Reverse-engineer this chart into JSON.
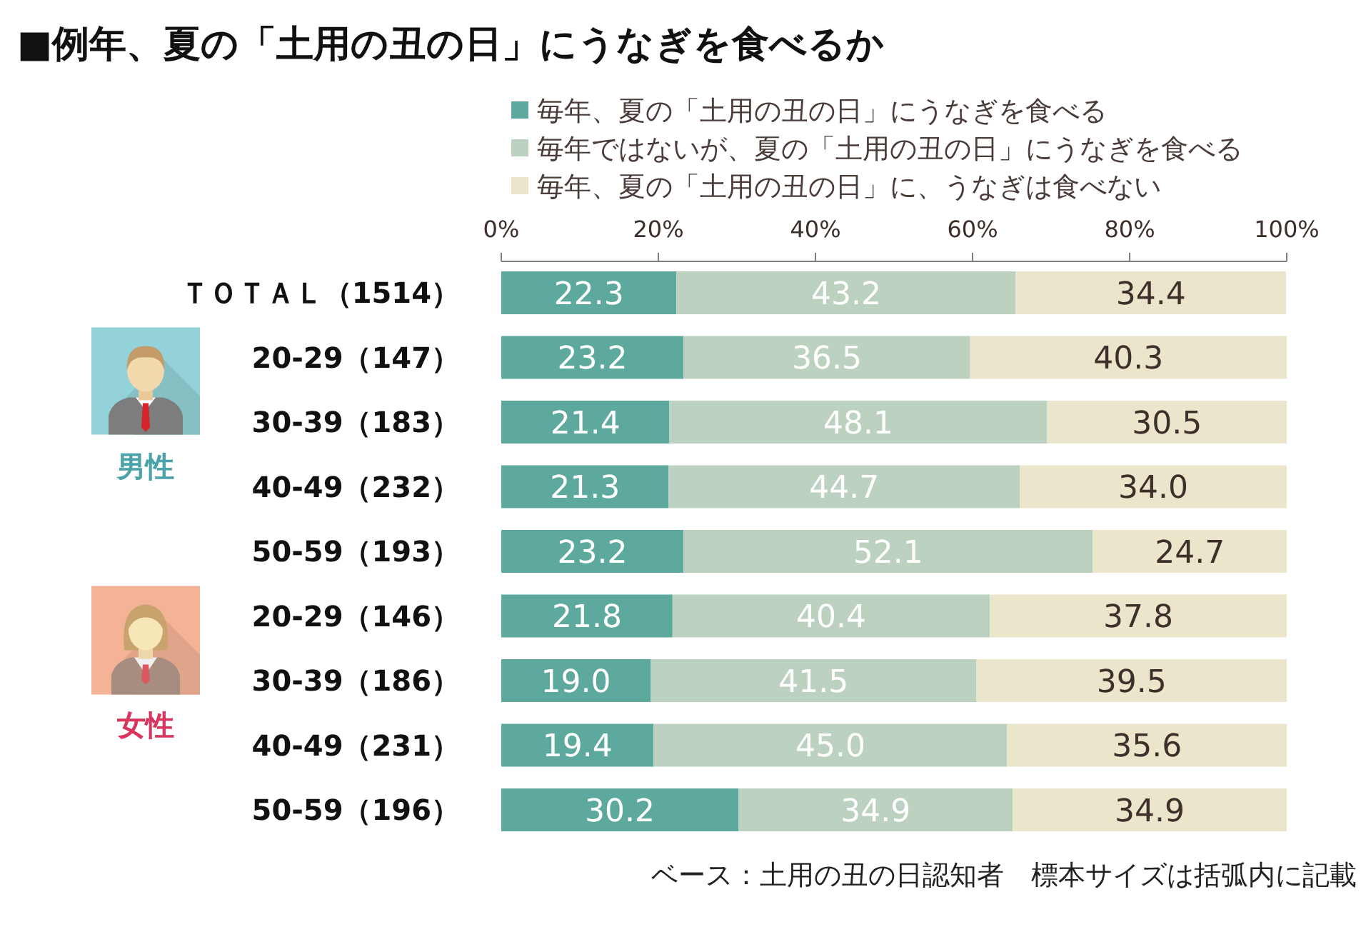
{
  "chart_data": {
    "type": "bar",
    "orientation": "horizontal",
    "stacked": true,
    "title": "■例年、夏の「土用の丑の日」にうなぎを食べるか",
    "categories": [
      "ＴＯＴＡＬ（1514）",
      "20-29（147）",
      "30-39（183）",
      "40-49（232）",
      "50-59（193）",
      "20-29（146）",
      "30-39（186）",
      "40-49（231）",
      "50-59（196）"
    ],
    "series": [
      {
        "name": "毎年、夏の「土用の丑の日」にうなぎを食べる",
        "color": "#5ea99d",
        "values": [
          22.3,
          23.2,
          21.4,
          21.3,
          23.2,
          21.8,
          19.0,
          19.4,
          30.2
        ],
        "value_labels": [
          "22.3",
          "23.2",
          "21.4",
          "21.3",
          "23.2",
          "21.8",
          "19.0",
          "19.4",
          "30.2"
        ]
      },
      {
        "name": "毎年ではないが、夏の「土用の丑の日」にうなぎを食べる",
        "color": "#bcd1bf",
        "values": [
          43.2,
          36.5,
          48.1,
          44.7,
          52.1,
          40.4,
          41.5,
          45.0,
          34.9
        ],
        "value_labels": [
          "43.2",
          "36.5",
          "48.1",
          "44.7",
          "52.1",
          "40.4",
          "41.5",
          "45.0",
          "34.9"
        ]
      },
      {
        "name": "毎年、夏の「土用の丑の日」に、うなぎは食べない",
        "color": "#ebe5cc",
        "values": [
          34.4,
          40.3,
          30.5,
          34.0,
          24.7,
          37.8,
          39.5,
          35.6,
          34.9
        ],
        "value_labels": [
          "34.4",
          "40.3",
          "30.5",
          "34.0",
          "24.7",
          "37.8",
          "39.5",
          "35.6",
          "34.9"
        ]
      }
    ],
    "xlim": [
      0,
      100
    ],
    "xticks": [
      {
        "value": 0,
        "label": "0%"
      },
      {
        "value": 20,
        "label": "20%"
      },
      {
        "value": 40,
        "label": "40%"
      },
      {
        "value": 60,
        "label": "60%"
      },
      {
        "value": 80,
        "label": "80%"
      },
      {
        "value": 100,
        "label": "100%"
      }
    ],
    "legend": "top",
    "annotations": [
      "男性",
      "女性",
      "ベース：土用の丑の日認知者　標本サイズは括弧内に記載"
    ]
  }
}
